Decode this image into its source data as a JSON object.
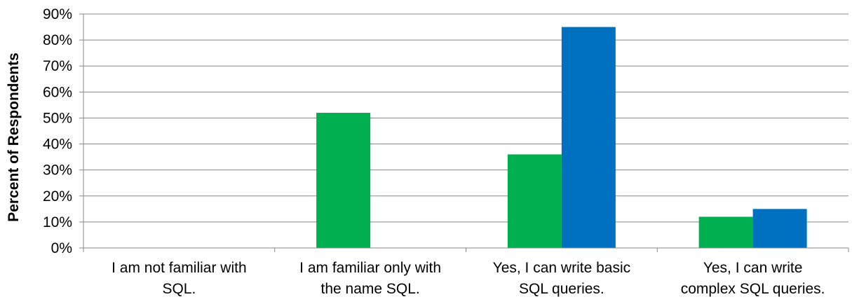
{
  "chart_data": {
    "type": "bar",
    "title": "",
    "xlabel": "",
    "ylabel": "Percent of Respondents",
    "ylim": [
      0,
      90
    ],
    "yticks": [
      "0%",
      "10%",
      "20%",
      "30%",
      "40%",
      "50%",
      "60%",
      "70%",
      "80%",
      "90%"
    ],
    "categories": [
      [
        "I am not familiar with",
        "SQL."
      ],
      [
        "I am familiar only with",
        "the name SQL."
      ],
      [
        "Yes, I can write basic",
        "SQL queries."
      ],
      [
        "Yes, I can write",
        "complex SQL queries."
      ]
    ],
    "series": [
      {
        "color": "#00b050",
        "values": [
          0,
          52,
          36,
          12
        ]
      },
      {
        "color": "#0070c0",
        "values": [
          0,
          0,
          85,
          15
        ]
      }
    ],
    "grid": true,
    "legend": "none"
  }
}
